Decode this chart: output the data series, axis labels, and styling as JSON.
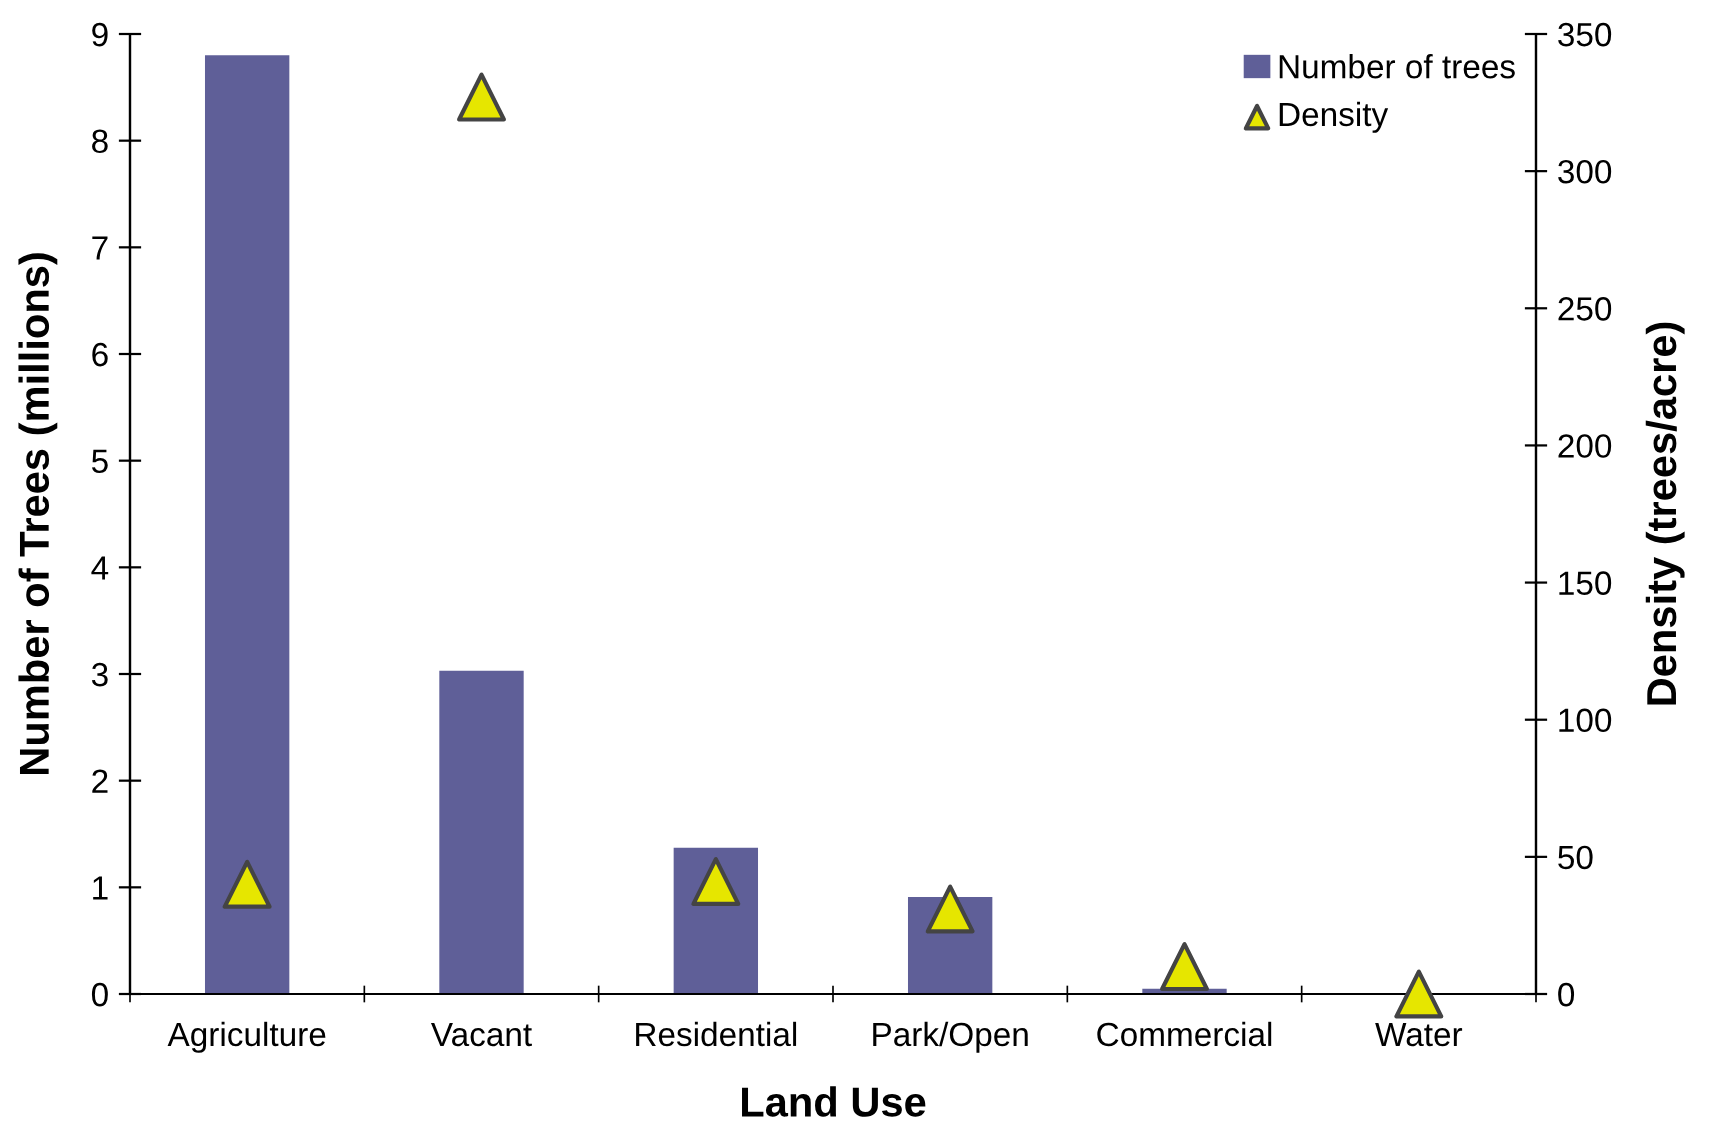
{
  "chart_data": {
    "type": "bar",
    "xlabel": "Land Use",
    "ylabel": "Number of Trees (millions)",
    "y2label": "Density (trees/acre)",
    "categories": [
      "Agriculture",
      "Vacant",
      "Residential",
      "Park/Open",
      "Commercial",
      "Water"
    ],
    "series": [
      {
        "name": "Number of trees",
        "color": "#5f5f98",
        "values": [
          8.8,
          3.03,
          1.37,
          0.91,
          0.05,
          0
        ]
      },
      {
        "name": "Density",
        "type": "scatter",
        "axis": "y2",
        "color": "#e6e600",
        "marker": "triangle",
        "values": [
          40,
          327,
          41,
          31,
          10,
          0
        ]
      }
    ],
    "ylim": [
      0,
      9
    ],
    "yticks": [
      0,
      1,
      2,
      3,
      4,
      5,
      6,
      7,
      8,
      9
    ],
    "y2lim": [
      0,
      350
    ],
    "y2ticks": [
      0,
      50,
      100,
      150,
      200,
      250,
      300,
      350
    ],
    "grid": false,
    "legend": "top right"
  }
}
